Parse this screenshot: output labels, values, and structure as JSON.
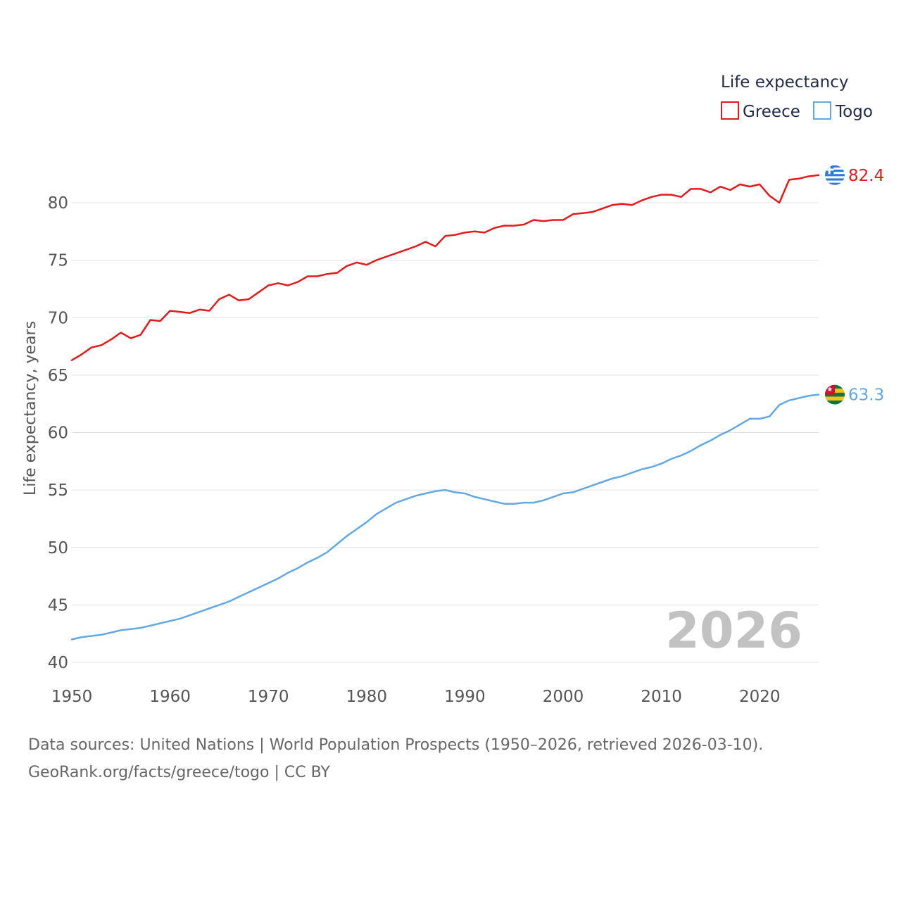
{
  "chart_data": {
    "type": "line",
    "title": "",
    "legend_title": "Life expectancy",
    "legend_position": "top-right",
    "ylabel": "Life expectancy, years",
    "xlabel": "",
    "xlim": [
      1950,
      2026
    ],
    "ylim": [
      40,
      83
    ],
    "x_ticks": [
      1950,
      1960,
      1970,
      1980,
      1990,
      2000,
      2010,
      2020
    ],
    "x_tick_labels": [
      "1950",
      "1960",
      "1970",
      "1980",
      "1990",
      "2000",
      "2010",
      "2020"
    ],
    "y_ticks": [
      40,
      45,
      50,
      55,
      60,
      65,
      70,
      75,
      80
    ],
    "y_tick_labels": [
      "40",
      "45",
      "50",
      "55",
      "60",
      "65",
      "70",
      "75",
      "80"
    ],
    "grid": true,
    "year_watermark": "2026",
    "series": [
      {
        "name": "Greece",
        "color": "#e41a1c",
        "end_label": "82.4",
        "flag_icon": "greece-flag-icon",
        "x": [
          1950,
          1951,
          1952,
          1953,
          1954,
          1955,
          1956,
          1957,
          1958,
          1959,
          1960,
          1961,
          1962,
          1963,
          1964,
          1965,
          1966,
          1967,
          1968,
          1969,
          1970,
          1971,
          1972,
          1973,
          1974,
          1975,
          1976,
          1977,
          1978,
          1979,
          1980,
          1981,
          1982,
          1983,
          1984,
          1985,
          1986,
          1987,
          1988,
          1989,
          1990,
          1991,
          1992,
          1993,
          1994,
          1995,
          1996,
          1997,
          1998,
          1999,
          2000,
          2001,
          2002,
          2003,
          2004,
          2005,
          2006,
          2007,
          2008,
          2009,
          2010,
          2011,
          2012,
          2013,
          2014,
          2015,
          2016,
          2017,
          2018,
          2019,
          2020,
          2021,
          2022,
          2023,
          2024,
          2025,
          2026
        ],
        "values": [
          66.3,
          66.8,
          67.4,
          67.6,
          68.1,
          68.7,
          68.2,
          68.5,
          69.8,
          69.7,
          70.6,
          70.5,
          70.4,
          70.7,
          70.6,
          71.6,
          72.0,
          71.5,
          71.6,
          72.2,
          72.8,
          73.0,
          72.8,
          73.1,
          73.6,
          73.6,
          73.8,
          73.9,
          74.5,
          74.8,
          74.6,
          75.0,
          75.3,
          75.6,
          75.9,
          76.2,
          76.6,
          76.2,
          77.1,
          77.2,
          77.4,
          77.5,
          77.4,
          77.8,
          78.0,
          78.0,
          78.1,
          78.5,
          78.4,
          78.5,
          78.5,
          79.0,
          79.1,
          79.2,
          79.5,
          79.8,
          79.9,
          79.8,
          80.2,
          80.5,
          80.7,
          80.7,
          80.5,
          81.2,
          81.2,
          80.9,
          81.4,
          81.1,
          81.6,
          81.4,
          81.6,
          80.6,
          80.0,
          82.0,
          82.1,
          82.3,
          82.4
        ]
      },
      {
        "name": "Togo",
        "color": "#62a8e5",
        "end_label": "63.3",
        "flag_icon": "togo-flag-icon",
        "x": [
          1950,
          1951,
          1952,
          1953,
          1954,
          1955,
          1956,
          1957,
          1958,
          1959,
          1960,
          1961,
          1962,
          1963,
          1964,
          1965,
          1966,
          1967,
          1968,
          1969,
          1970,
          1971,
          1972,
          1973,
          1974,
          1975,
          1976,
          1977,
          1978,
          1979,
          1980,
          1981,
          1982,
          1983,
          1984,
          1985,
          1986,
          1987,
          1988,
          1989,
          1990,
          1991,
          1992,
          1993,
          1994,
          1995,
          1996,
          1997,
          1998,
          1999,
          2000,
          2001,
          2002,
          2003,
          2004,
          2005,
          2006,
          2007,
          2008,
          2009,
          2010,
          2011,
          2012,
          2013,
          2014,
          2015,
          2016,
          2017,
          2018,
          2019,
          2020,
          2021,
          2022,
          2023,
          2024,
          2025,
          2026
        ],
        "values": [
          42.0,
          42.2,
          42.3,
          42.4,
          42.6,
          42.8,
          42.9,
          43.0,
          43.2,
          43.4,
          43.6,
          43.8,
          44.1,
          44.4,
          44.7,
          45.0,
          45.3,
          45.7,
          46.1,
          46.5,
          46.9,
          47.3,
          47.8,
          48.2,
          48.7,
          49.1,
          49.6,
          50.3,
          51.0,
          51.6,
          52.2,
          52.9,
          53.4,
          53.9,
          54.2,
          54.5,
          54.7,
          54.9,
          55.0,
          54.8,
          54.7,
          54.4,
          54.2,
          54.0,
          53.8,
          53.8,
          53.9,
          53.9,
          54.1,
          54.4,
          54.7,
          54.8,
          55.1,
          55.4,
          55.7,
          56.0,
          56.2,
          56.5,
          56.8,
          57.0,
          57.3,
          57.7,
          58.0,
          58.4,
          58.9,
          59.3,
          59.8,
          60.2,
          60.7,
          61.2,
          61.2,
          61.4,
          62.4,
          62.8,
          63.0,
          63.2,
          63.3
        ]
      }
    ]
  },
  "footer": {
    "source_line": "Data sources: United Nations | World Population Prospects (1950–2026, retrieved 2026-03-10).",
    "credit_line": "GeoRank.org/facts/greece/togo | CC BY"
  }
}
